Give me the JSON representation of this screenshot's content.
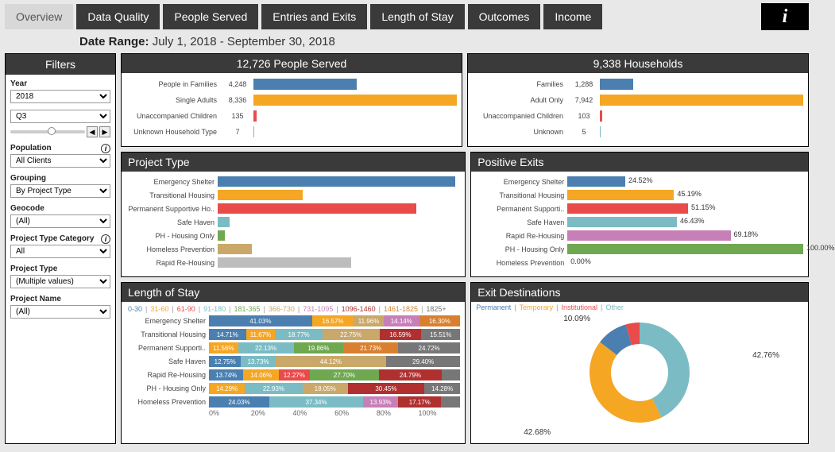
{
  "tabs": {
    "items": [
      "Overview",
      "Data Quality",
      "People Served",
      "Entries and Exits",
      "Length of Stay",
      "Outcomes",
      "Income"
    ],
    "active_index": 0
  },
  "date_range": {
    "label": "Date Range:",
    "value": "July 1, 2018 - September 30, 2018"
  },
  "sidebar": {
    "title": "Filters",
    "year": {
      "label": "Year",
      "value": "2018"
    },
    "quarter": {
      "value": "Q3"
    },
    "population": {
      "label": "Population",
      "value": "All Clients"
    },
    "grouping": {
      "label": "Grouping",
      "value": "By Project Type"
    },
    "geocode": {
      "label": "Geocode",
      "value": "(All)"
    },
    "ptcat": {
      "label": "Project Type Category",
      "value": "All"
    },
    "ptype": {
      "label": "Project Type",
      "value": "(Multiple values)"
    },
    "pname": {
      "label": "Project Name",
      "value": "(All)"
    }
  },
  "people_served": {
    "title": "12,726 People Served",
    "rows": [
      {
        "label": "People in Families",
        "value": "4,248",
        "num": 4248,
        "color": "#4a7fb0"
      },
      {
        "label": "Single Adults",
        "value": "8,336",
        "num": 8336,
        "color": "#f5a623"
      },
      {
        "label": "Unaccompanied Children",
        "value": "135",
        "num": 135,
        "color": "#e94b4b"
      },
      {
        "label": "Unknown Household Type",
        "value": "7",
        "num": 7,
        "color": "#7bbcc4"
      }
    ],
    "max": 8336
  },
  "households": {
    "title": "9,338 Households",
    "rows": [
      {
        "label": "Families",
        "value": "1,288",
        "num": 1288,
        "color": "#4a7fb0"
      },
      {
        "label": "Adult Only",
        "value": "7,942",
        "num": 7942,
        "color": "#f5a623"
      },
      {
        "label": "Unaccompanied Children",
        "value": "103",
        "num": 103,
        "color": "#e94b4b"
      },
      {
        "label": "Unknown",
        "value": "5",
        "num": 5,
        "color": "#7bbcc4"
      }
    ],
    "max": 7942
  },
  "project_type": {
    "title": "Project Type",
    "rows": [
      {
        "label": "Emergency Shelter",
        "pct": 98,
        "color": "#4a7fb0"
      },
      {
        "label": "Transitional Housing",
        "pct": 35,
        "color": "#f5a623"
      },
      {
        "label": "Permanent Supportive Ho..",
        "pct": 82,
        "color": "#e94b4b"
      },
      {
        "label": "Safe Haven",
        "pct": 5,
        "color": "#7bbcc4"
      },
      {
        "label": "PH - Housing Only",
        "pct": 3,
        "color": "#6fa850"
      },
      {
        "label": "Homeless Prevention",
        "pct": 14,
        "color": "#c9a86a"
      },
      {
        "label": "Rapid Re-Housing",
        "pct": 55,
        "color": "#bdbdbd"
      }
    ]
  },
  "positive_exits": {
    "title": "Positive Exits",
    "rows": [
      {
        "label": "Emergency Shelter",
        "pct": 24.52,
        "color": "#4a7fb0"
      },
      {
        "label": "Transitional Housing",
        "pct": 45.19,
        "color": "#f5a623"
      },
      {
        "label": "Permanent Supporti..",
        "pct": 51.15,
        "color": "#e94b4b"
      },
      {
        "label": "Safe Haven",
        "pct": 46.43,
        "color": "#7bbcc4"
      },
      {
        "label": "Rapid Re-Housing",
        "pct": 69.18,
        "color": "#c77fb8"
      },
      {
        "label": "PH - Housing Only",
        "pct": 100.0,
        "color": "#6fa850"
      },
      {
        "label": "Homeless Prevention",
        "pct": 0.0,
        "color": "#c9a86a"
      }
    ]
  },
  "los": {
    "title": "Length of Stay",
    "buckets": [
      {
        "label": "0-30",
        "color": "#4a7fb0"
      },
      {
        "label": "31-60",
        "color": "#f5a623"
      },
      {
        "label": "61-90",
        "color": "#e94b4b"
      },
      {
        "label": "91-180",
        "color": "#7bbcc4"
      },
      {
        "label": "181-365",
        "color": "#6fa850"
      },
      {
        "label": "366-730",
        "color": "#c9a86a"
      },
      {
        "label": "731-1095",
        "color": "#c77fb8"
      },
      {
        "label": "1096-1460",
        "color": "#b03030"
      },
      {
        "label": "1461-1825",
        "color": "#d88030"
      },
      {
        "label": "1825+",
        "color": "#777"
      }
    ],
    "rows": [
      {
        "label": "Emergency Shelter",
        "segs": [
          41.03,
          16.57,
          0,
          0,
          0,
          11.96,
          14.14,
          0,
          16.3,
          0
        ]
      },
      {
        "label": "Transitional Housing",
        "segs": [
          14.71,
          11.67,
          0,
          18.77,
          0,
          22.75,
          0,
          16.59,
          0,
          15.51
        ]
      },
      {
        "label": "Permanent Supporti..",
        "segs": [
          0,
          11.56,
          0,
          22.13,
          19.86,
          0,
          0,
          0,
          21.73,
          24.72
        ]
      },
      {
        "label": "Safe Haven",
        "segs": [
          12.75,
          0,
          0,
          13.73,
          0,
          44.12,
          0,
          0,
          0,
          29.4
        ]
      },
      {
        "label": "Rapid Re-Housing",
        "segs": [
          13.74,
          14.06,
          12.27,
          0,
          27.7,
          0,
          0,
          24.79,
          0,
          7.44
        ]
      },
      {
        "label": "PH - Housing Only",
        "segs": [
          0,
          14.29,
          0,
          22.93,
          0,
          18.05,
          0,
          30.45,
          0,
          14.28
        ]
      },
      {
        "label": "Homeless Prevention",
        "segs": [
          24.03,
          0,
          0,
          37.34,
          0,
          0,
          13.93,
          17.17,
          0,
          7.53
        ]
      }
    ],
    "axis": [
      "0%",
      "20%",
      "40%",
      "60%",
      "80%",
      "100%"
    ]
  },
  "exit_dest": {
    "title": "Exit Destinations",
    "legend": [
      {
        "label": "Permanent",
        "color": "#4a7fb0"
      },
      {
        "label": "Temporary",
        "color": "#f5a623"
      },
      {
        "label": "Institutional",
        "color": "#e94b4b"
      },
      {
        "label": "Other",
        "color": "#7bbcc4"
      }
    ],
    "slices": [
      {
        "pct": 42.76,
        "color": "#7bbcc4",
        "label": "42.76%"
      },
      {
        "pct": 42.68,
        "color": "#f5a623",
        "label": "42.68%"
      },
      {
        "pct": 10.09,
        "color": "#4a7fb0",
        "label": "10.09%"
      },
      {
        "pct": 4.47,
        "color": "#e94b4b",
        "label": ""
      }
    ]
  }
}
